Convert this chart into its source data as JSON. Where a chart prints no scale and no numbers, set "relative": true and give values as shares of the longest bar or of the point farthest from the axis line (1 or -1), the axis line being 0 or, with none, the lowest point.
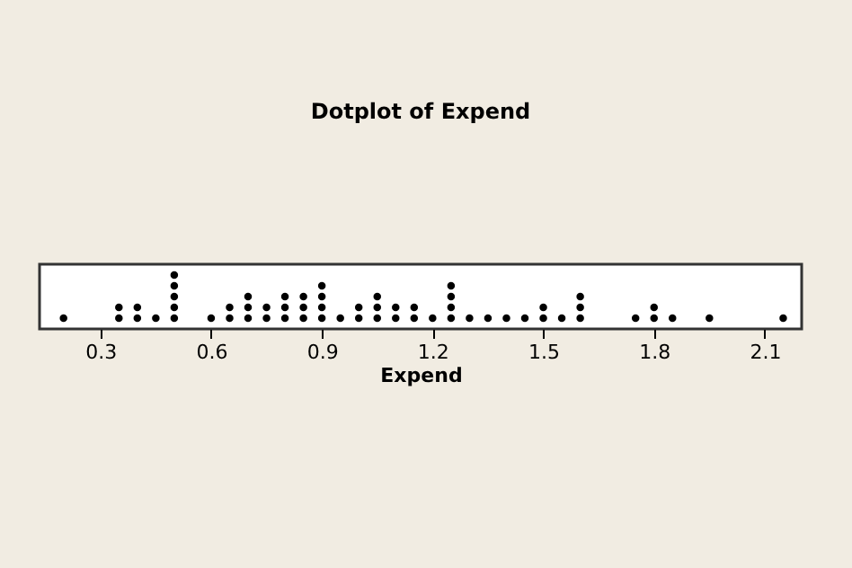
{
  "chart_data": {
    "type": "scatter",
    "title": "Dotplot of Expend",
    "xlabel": "Expend",
    "relative": true,
    "marker": "circle",
    "grid": false,
    "xlim": [
      0.135,
      2.2
    ],
    "xticks": [
      0.3,
      0.6,
      0.9,
      1.2,
      1.5,
      1.8,
      2.1
    ],
    "x": [
      0.2,
      0.35,
      0.35,
      0.4,
      0.4,
      0.45,
      0.5,
      0.5,
      0.5,
      0.5,
      0.5,
      0.6,
      0.65,
      0.65,
      0.7,
      0.7,
      0.7,
      0.75,
      0.75,
      0.8,
      0.8,
      0.8,
      0.85,
      0.85,
      0.85,
      0.9,
      0.9,
      0.9,
      0.9,
      0.95,
      1.0,
      1.0,
      1.05,
      1.05,
      1.05,
      1.1,
      1.1,
      1.15,
      1.15,
      1.2,
      1.25,
      1.25,
      1.25,
      1.25,
      1.3,
      1.35,
      1.4,
      1.45,
      1.5,
      1.5,
      1.55,
      1.6,
      1.6,
      1.6,
      1.75,
      1.8,
      1.8,
      1.85,
      1.95,
      2.15
    ],
    "series": [
      {
        "color": "#000000",
        "values": [
          0.2,
          0.2,
          0.4,
          0.2,
          0.4,
          0.2,
          0.2,
          0.4,
          0.6,
          0.8,
          1.0,
          0.2,
          0.2,
          0.4,
          0.2,
          0.4,
          0.6,
          0.2,
          0.4,
          0.2,
          0.4,
          0.6,
          0.2,
          0.4,
          0.6,
          0.2,
          0.4,
          0.6,
          0.8,
          0.2,
          0.2,
          0.4,
          0.2,
          0.4,
          0.6,
          0.2,
          0.4,
          0.2,
          0.4,
          0.2,
          0.2,
          0.4,
          0.6,
          0.8,
          0.2,
          0.2,
          0.2,
          0.2,
          0.2,
          0.4,
          0.2,
          0.2,
          0.4,
          0.6,
          0.2,
          0.2,
          0.4,
          0.2,
          0.2,
          0.2
        ]
      }
    ]
  }
}
